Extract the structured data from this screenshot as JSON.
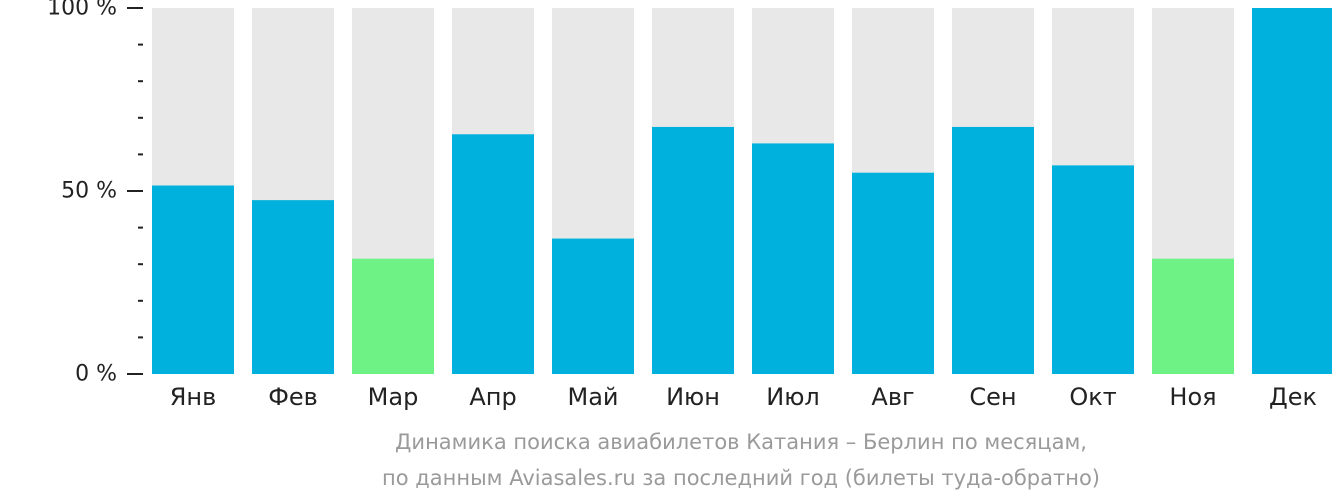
{
  "chart_data": {
    "type": "bar",
    "categories": [
      "Янв",
      "Фев",
      "Мар",
      "Апр",
      "Май",
      "Июн",
      "Июл",
      "Авг",
      "Сен",
      "Окт",
      "Ноя",
      "Дек"
    ],
    "values": [
      51.5,
      47.5,
      31.5,
      65.5,
      37,
      67.5,
      63,
      55,
      67.5,
      57,
      31.5,
      100
    ],
    "ylim": [
      0,
      100
    ],
    "yticks": [
      {
        "value": 0,
        "label": "0 %"
      },
      {
        "value": 50,
        "label": "50 %"
      },
      {
        "value": 100,
        "label": "100 %"
      }
    ],
    "minor_tick_step": 10,
    "grid": false,
    "legend": "none",
    "colors": {
      "bar": "#00b0dd",
      "bar_low": "#6ef286",
      "background_bar": "#e8e8e8",
      "axis": "#222222"
    },
    "low_categories": [
      "Мар",
      "Ноя"
    ],
    "caption_lines": [
      "Динамика поиска авиабилетов Катания – Берлин по месяцам,",
      "по данным Aviasales.ru за последний год (билеты туда-обратно)"
    ]
  }
}
